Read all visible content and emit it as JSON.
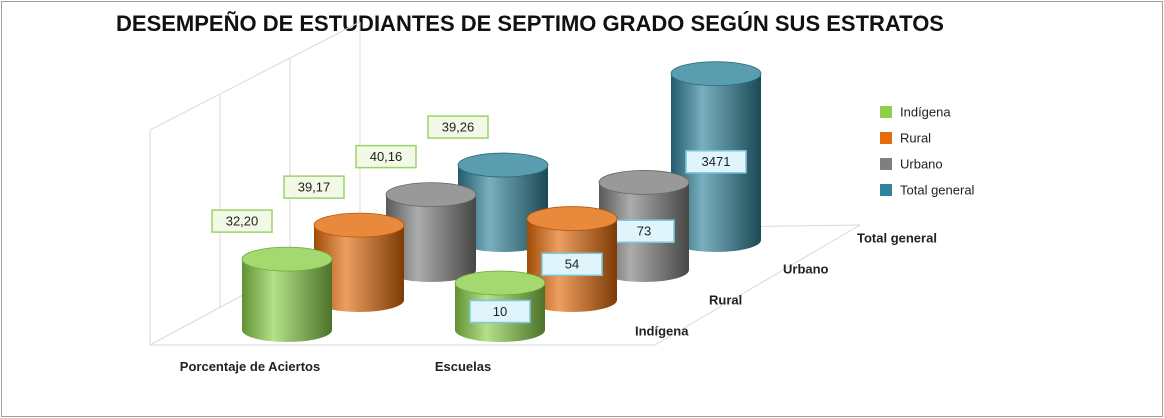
{
  "chart_data": {
    "type": "bar3d_cylinder",
    "title": "DESEMPEÑO DE ESTUDIANTES DE SEPTIMO GRADO SEGÚN SUS ESTRATOS",
    "categories": [
      "Porcentaje de Aciertos",
      "Escuelas"
    ],
    "series": [
      {
        "name": "Indígena",
        "color": "#8ccf4a",
        "values": [
          32.2,
          10
        ],
        "value_labels": [
          "32,20",
          "10"
        ]
      },
      {
        "name": "Rural",
        "color": "#e46c0a",
        "values": [
          39.17,
          54
        ],
        "value_labels": [
          "39,17",
          "54"
        ]
      },
      {
        "name": "Urbano",
        "color": "#7f7f7f",
        "values": [
          40.16,
          73
        ],
        "value_labels": [
          "40,16",
          "73"
        ]
      },
      {
        "name": "Total general",
        "color": "#31849b",
        "values": [
          39.26,
          3471
        ],
        "value_labels": [
          "39,26",
          "3471"
        ]
      }
    ],
    "ylim": [
      1,
      10000
    ],
    "log_scale": true,
    "legend": "right"
  }
}
